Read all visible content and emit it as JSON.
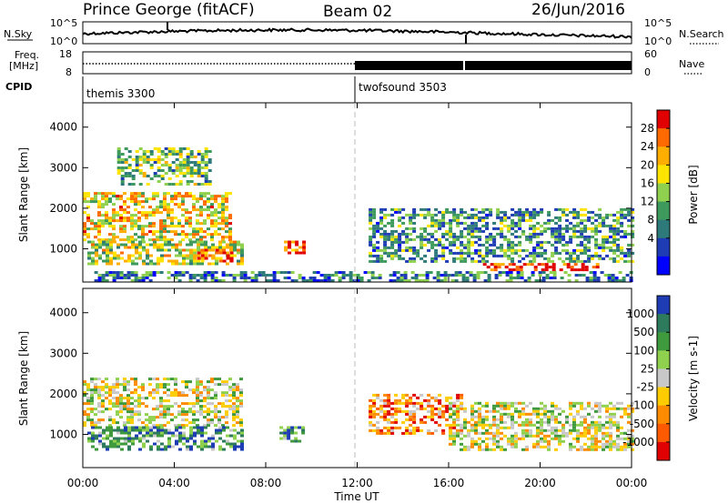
{
  "header": {
    "station": "Prince George (fitACF)",
    "beam": "Beam 02",
    "date": "26/Jun/2016"
  },
  "panels": {
    "nsky": {
      "label": "N.Sky",
      "right_label": "N.Search",
      "left_ticks": [
        "10^5",
        "10^0"
      ],
      "right_ticks": [
        "10^5",
        "10^0"
      ]
    },
    "freq": {
      "label_line1": "Freq.",
      "label_line2": "[MHz]",
      "left_ticks": [
        "18",
        "8"
      ],
      "right_ticks": [
        "60",
        "0"
      ],
      "right_label": "Nave"
    },
    "cpid": {
      "label": "CPID",
      "segments": [
        "themis 3300",
        "twofsound 3503"
      ]
    }
  },
  "chart_data": [
    {
      "type": "heatmap",
      "title": "",
      "xlabel": "",
      "ylabel": "Slant Range [km]",
      "x": [
        "00:00",
        "04:00",
        "08:00",
        "12:00",
        "16:00",
        "20:00",
        "00:00"
      ],
      "xlim": [
        0,
        24
      ],
      "ylim": [
        180,
        4600
      ],
      "yticks": [
        1000,
        2000,
        3000,
        4000
      ],
      "colorbar": {
        "label": "Power [dB]",
        "ticks": [
          "28",
          "24",
          "20",
          "16",
          "12",
          "8",
          "4"
        ],
        "colors": [
          "#e00000",
          "#ff6a00",
          "#ffae00",
          "#ffe400",
          "#8fd14f",
          "#3e9a5c",
          "#2e7a7a",
          "#1e3cb4",
          "#0000ff"
        ]
      },
      "echo_regions": [
        {
          "t0": 0.0,
          "t1": 6.5,
          "r0": 1200,
          "r1": 2400,
          "level": 0.65
        },
        {
          "t0": 1.5,
          "t1": 5.5,
          "r0": 2600,
          "r1": 3500,
          "level": 0.45
        },
        {
          "t0": 0.2,
          "t1": 6.9,
          "r0": 600,
          "r1": 1200,
          "level": 0.55
        },
        {
          "t0": 5.0,
          "t1": 6.5,
          "r0": 700,
          "r1": 1000,
          "level": 0.85
        },
        {
          "t0": 8.8,
          "t1": 9.6,
          "r0": 900,
          "r1": 1200,
          "level": 0.9
        },
        {
          "t0": 12.5,
          "t1": 24.0,
          "r0": 700,
          "r1": 2000,
          "level": 0.35
        },
        {
          "t0": 17.5,
          "t1": 22.5,
          "r0": 450,
          "r1": 650,
          "level": 0.95
        },
        {
          "t0": 0.5,
          "t1": 24.0,
          "r0": 200,
          "r1": 450,
          "level": 0.3
        }
      ]
    },
    {
      "type": "heatmap",
      "title": "",
      "xlabel": "Time UT",
      "ylabel": "Slant Range [km]",
      "x": [
        "00:00",
        "04:00",
        "08:00",
        "12:00",
        "16:00",
        "20:00",
        "00:00"
      ],
      "xlim": [
        0,
        24
      ],
      "ylim": [
        180,
        4600
      ],
      "yticks": [
        1000,
        2000,
        3000,
        4000
      ],
      "colorbar": {
        "label": "Velocity [m s-1]",
        "ticks": [
          "1000",
          "500",
          "100",
          "25",
          "-25",
          "-100",
          "-500",
          "-1000"
        ],
        "colors": [
          "#1e3cb4",
          "#2e7a5c",
          "#3e9a3c",
          "#8fd14f",
          "#c8c8c8",
          "#ffcc00",
          "#ff8c00",
          "#ff5a00",
          "#e00000"
        ]
      },
      "echo_regions": [
        {
          "t0": 0.0,
          "t1": 7.0,
          "r0": 1200,
          "r1": 2400,
          "level": 0.5
        },
        {
          "t0": 0.2,
          "t1": 7.0,
          "r0": 600,
          "r1": 1200,
          "level": 0.75
        },
        {
          "t0": 8.6,
          "t1": 9.6,
          "r0": 800,
          "r1": 1200,
          "level": 0.8
        },
        {
          "t0": 12.5,
          "t1": 16.5,
          "r0": 1000,
          "r1": 2000,
          "level": 0.25
        },
        {
          "t0": 16.0,
          "t1": 24.0,
          "r0": 600,
          "r1": 1800,
          "level": 0.5
        }
      ]
    }
  ]
}
